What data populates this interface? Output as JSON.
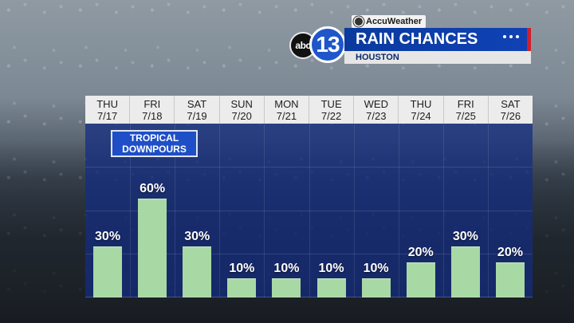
{
  "header": {
    "brand": "AccuWeather",
    "logo_abc": "abc",
    "logo_channel": "13",
    "title": "RAIN CHANCES",
    "subtitle": "HOUSTON",
    "menu_icon": "three-dots-icon",
    "colors": {
      "title_bg": "#0b3a9e",
      "accent": "#d21f2a",
      "bar": "#a8d8a4"
    }
  },
  "annotation": {
    "line1": "TROPICAL",
    "line2": "DOWNPOURS"
  },
  "days": [
    {
      "dow": "THU",
      "date": "7/17"
    },
    {
      "dow": "FRI",
      "date": "7/18"
    },
    {
      "dow": "SAT",
      "date": "7/19"
    },
    {
      "dow": "SUN",
      "date": "7/20"
    },
    {
      "dow": "MON",
      "date": "7/21"
    },
    {
      "dow": "TUE",
      "date": "7/22"
    },
    {
      "dow": "WED",
      "date": "7/23"
    },
    {
      "dow": "THU",
      "date": "7/24"
    },
    {
      "dow": "FRI",
      "date": "7/25"
    },
    {
      "dow": "SAT",
      "date": "7/26"
    }
  ],
  "chart_data": {
    "type": "bar",
    "title": "RAIN CHANCES",
    "subtitle": "HOUSTON",
    "categories": [
      "THU 7/17",
      "FRI 7/18",
      "SAT 7/19",
      "SUN 7/20",
      "MON 7/21",
      "TUE 7/22",
      "WED 7/23",
      "THU 7/24",
      "FRI 7/25",
      "SAT 7/26"
    ],
    "values": [
      30,
      60,
      30,
      10,
      10,
      10,
      10,
      20,
      30,
      20
    ],
    "labels": [
      "30%",
      "60%",
      "30%",
      "10%",
      "10%",
      "10%",
      "10%",
      "20%",
      "30%",
      "20%"
    ],
    "ylim": [
      0,
      100
    ],
    "annotations": [
      "TROPICAL DOWNPOURS"
    ]
  }
}
